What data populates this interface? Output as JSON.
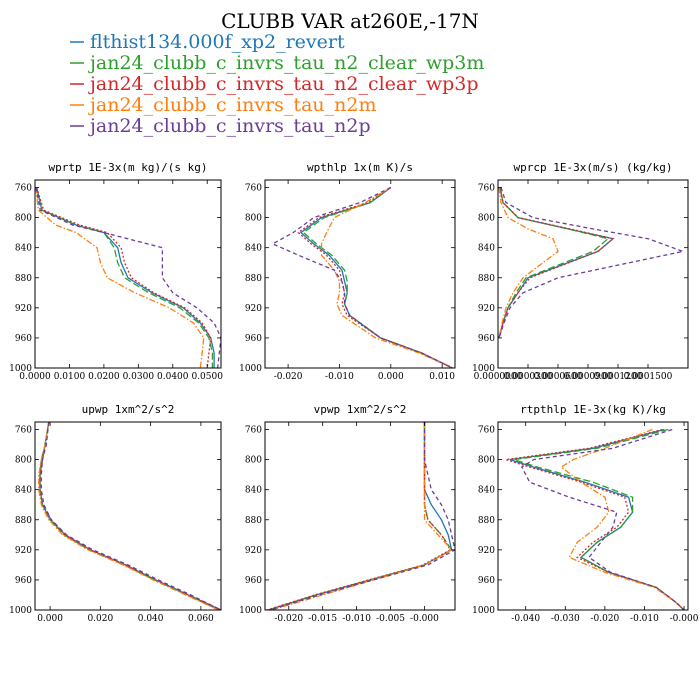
{
  "title": "CLUBB VAR at260E,-17N",
  "legend": [
    {
      "label": "flthist134.000f_xp2_revert",
      "color": "#1f77b4",
      "dash": "solid"
    },
    {
      "label": "jan24_clubb_c_invrs_tau_n2_clear_wp3m",
      "color": "#2ca02c",
      "dash": "longdash"
    },
    {
      "label": "jan24_clubb_c_invrs_tau_n2_clear_wp3p",
      "color": "#d62728",
      "dash": "dot"
    },
    {
      "label": "jan24_clubb_c_invrs_tau_n2m",
      "color": "#ff7f0e",
      "dash": "dashdot"
    },
    {
      "label": "jan24_clubb_c_invrs_tau_n2p",
      "color": "#6a3d9a",
      "dash": "dash"
    }
  ],
  "chart_data": [
    {
      "type": "line",
      "title": "wprtp  1E-3x(m kg)/(s kg)",
      "xlim": [
        0,
        0.054
      ],
      "ylim": [
        1000,
        750
      ],
      "xticks": [
        0,
        0.01,
        0.02,
        0.03,
        0.04,
        0.05
      ],
      "xtick_labels": [
        "0.0000",
        "0.0100",
        "0.0200",
        "0.0300",
        "0.0400",
        "0.0500"
      ],
      "yticks": [
        760,
        800,
        840,
        880,
        920,
        960,
        1000
      ],
      "ytick_labels": [
        "760",
        "800",
        "840",
        "880",
        "920",
        "960",
        "1000"
      ],
      "y": [
        760,
        790,
        810,
        820,
        840,
        860,
        880,
        900,
        920,
        940,
        960,
        980,
        1000
      ],
      "series": [
        {
          "values": [
            0.0005,
            0.002,
            0.012,
            0.02,
            0.024,
            0.025,
            0.027,
            0.034,
            0.043,
            0.048,
            0.051,
            0.052,
            0.052
          ]
        },
        {
          "values": [
            0.0005,
            0.002,
            0.012,
            0.02,
            0.023,
            0.024,
            0.026,
            0.033,
            0.042,
            0.0475,
            0.0505,
            0.0515,
            0.0515
          ]
        },
        {
          "values": [
            0.0005,
            0.0025,
            0.013,
            0.021,
            0.025,
            0.026,
            0.028,
            0.0345,
            0.0435,
            0.0485,
            0.051,
            0.0505,
            0.05
          ]
        },
        {
          "values": [
            0.0002,
            0.001,
            0.006,
            0.012,
            0.018,
            0.019,
            0.021,
            0.029,
            0.039,
            0.046,
            0.049,
            0.0485,
            0.048
          ]
        },
        {
          "values": [
            0.0003,
            0.0015,
            0.011,
            0.02,
            0.037,
            0.037,
            0.037,
            0.04,
            0.047,
            0.052,
            0.054,
            0.0535,
            0.053
          ]
        }
      ]
    },
    {
      "type": "line",
      "title": "wpthlp  1x(m K)/s",
      "xlim": [
        -0.0245,
        0.0125
      ],
      "ylim": [
        1000,
        750
      ],
      "xticks": [
        -0.02,
        -0.01,
        0,
        0.01
      ],
      "xtick_labels": [
        "-0.020",
        "-0.010",
        "0.000",
        "0.010"
      ],
      "yticks": [
        760,
        800,
        840,
        880,
        920,
        960,
        1000
      ],
      "ytick_labels": [
        "760",
        "800",
        "840",
        "880",
        "920",
        "960",
        "1000"
      ],
      "y": [
        760,
        780,
        800,
        820,
        835,
        850,
        870,
        885,
        900,
        915,
        930,
        960,
        980,
        1000
      ],
      "series": [
        {
          "values": [
            0.0,
            -0.004,
            -0.0135,
            -0.0175,
            -0.015,
            -0.012,
            -0.0095,
            -0.009,
            -0.0085,
            -0.009,
            -0.008,
            -0.002,
            0.006,
            0.012
          ]
        },
        {
          "values": [
            0.0,
            -0.004,
            -0.013,
            -0.017,
            -0.0145,
            -0.0115,
            -0.009,
            -0.0085,
            -0.0085,
            -0.009,
            -0.008,
            -0.002,
            0.006,
            0.012
          ]
        },
        {
          "values": [
            0.0,
            -0.0045,
            -0.014,
            -0.018,
            -0.0155,
            -0.0125,
            -0.01,
            -0.0095,
            -0.009,
            -0.0095,
            -0.0085,
            -0.002,
            0.006,
            0.012
          ]
        },
        {
          "values": [
            0.0,
            -0.005,
            -0.011,
            -0.0125,
            -0.0135,
            -0.0135,
            -0.011,
            -0.01,
            -0.01,
            -0.0105,
            -0.0095,
            -0.003,
            0.0055,
            0.012
          ]
        },
        {
          "values": [
            0.0,
            -0.006,
            -0.015,
            -0.019,
            -0.023,
            -0.018,
            -0.011,
            -0.0095,
            -0.009,
            -0.009,
            -0.008,
            -0.002,
            0.006,
            0.012
          ]
        }
      ]
    },
    {
      "type": "line",
      "title": "wprcp  1E-3x(m/s) (kg/kg)",
      "xlim": [
        0,
        0.00019
      ],
      "ylim": [
        1000,
        750
      ],
      "xticks": [
        0,
        3e-05,
        6e-05,
        9e-05,
        0.00012,
        0.00015
      ],
      "xtick_labels": [
        "0.0000000",
        "0.0000300",
        "0.0000600",
        "0.0000900",
        "0.0001200",
        "0.0001500"
      ],
      "yticks": [
        760,
        800,
        840,
        880,
        920,
        960,
        1000
      ],
      "ytick_labels": [
        "760",
        "800",
        "840",
        "880",
        "920",
        "960",
        "1000"
      ],
      "y": [
        760,
        780,
        800,
        815,
        828,
        845,
        880,
        900,
        920,
        940,
        960
      ],
      "series": [
        {
          "values": [
            2e-06,
            5e-06,
            2e-05,
            7e-05,
            0.000115,
            0.0001,
            3e-05,
            2e-05,
            1e-05,
            5e-06,
            1e-06
          ]
        },
        {
          "values": [
            2e-06,
            5e-06,
            2e-05,
            7e-05,
            0.00011,
            9.5e-05,
            2.8e-05,
            1.8e-05,
            1e-05,
            5e-06,
            1e-06
          ]
        },
        {
          "values": [
            2e-06,
            5e-06,
            2e-05,
            7.2e-05,
            0.000115,
            0.0001,
            3.2e-05,
            2e-05,
            1e-05,
            5e-06,
            1e-06
          ]
        },
        {
          "values": [
            1e-06,
            3e-06,
            1e-05,
            3e-05,
            5.5e-05,
            6e-05,
            2.5e-05,
            1.5e-05,
            8e-06,
            4e-06,
            1e-06
          ]
        },
        {
          "values": [
            3e-06,
            8e-06,
            3.5e-05,
            9.5e-05,
            0.00015,
            0.000185,
            6e-05,
            2.5e-05,
            1.2e-05,
            6e-06,
            1e-06
          ]
        }
      ]
    },
    {
      "type": "line",
      "title": "upwp  1xm^2/s^2",
      "xlim": [
        -0.006,
        0.068
      ],
      "ylim": [
        1000,
        750
      ],
      "xticks": [
        0,
        0.02,
        0.04,
        0.06
      ],
      "xtick_labels": [
        "0.000",
        "0.020",
        "0.040",
        "0.060"
      ],
      "yticks": [
        760,
        800,
        840,
        880,
        920,
        960,
        1000
      ],
      "ytick_labels": [
        "760",
        "800",
        "840",
        "880",
        "920",
        "960",
        "1000"
      ],
      "y": [
        750,
        780,
        800,
        820,
        840,
        860,
        880,
        900,
        920,
        940,
        960,
        980,
        1000
      ],
      "series": [
        {
          "values": [
            -0.0005,
            -0.002,
            -0.003,
            -0.004,
            -0.004,
            -0.003,
            0.0,
            0.006,
            0.016,
            0.03,
            0.042,
            0.055,
            0.068
          ]
        },
        {
          "values": [
            -0.0005,
            -0.002,
            -0.0035,
            -0.004,
            -0.004,
            -0.003,
            0.0,
            0.0055,
            0.0155,
            0.0295,
            0.0415,
            0.0545,
            0.0675
          ]
        },
        {
          "values": [
            -0.0005,
            -0.002,
            -0.003,
            -0.004,
            -0.004,
            -0.003,
            0.0005,
            0.006,
            0.016,
            0.03,
            0.042,
            0.055,
            0.068
          ]
        },
        {
          "values": [
            -0.0005,
            -0.002,
            -0.0035,
            -0.0045,
            -0.0045,
            -0.0035,
            -0.0005,
            0.005,
            0.015,
            0.029,
            0.041,
            0.054,
            0.067
          ]
        },
        {
          "values": [
            -0.0005,
            -0.0015,
            -0.003,
            -0.0035,
            -0.0035,
            -0.0025,
            0.0005,
            0.0065,
            0.017,
            0.031,
            0.043,
            0.056,
            0.068
          ]
        }
      ]
    },
    {
      "type": "line",
      "title": "vpwp  1xm^2/s^2",
      "xlim": [
        -0.0235,
        0.0045
      ],
      "ylim": [
        1000,
        750
      ],
      "xticks": [
        -0.02,
        -0.015,
        -0.01,
        -0.005,
        0
      ],
      "xtick_labels": [
        "-0.020",
        "-0.015",
        "-0.010",
        "-0.005",
        "-0.000"
      ],
      "yticks": [
        760,
        800,
        840,
        880,
        920,
        960,
        1000
      ],
      "ytick_labels": [
        "760",
        "800",
        "840",
        "880",
        "920",
        "960",
        "1000"
      ],
      "y": [
        750,
        800,
        840,
        860,
        880,
        900,
        920,
        940,
        960,
        980,
        1000
      ],
      "series": [
        {
          "values": [
            0.0,
            0.0,
            0.0,
            0.001,
            0.0025,
            0.0035,
            0.004,
            0.0,
            -0.008,
            -0.016,
            -0.023
          ]
        },
        {
          "values": [
            0.0,
            0.0,
            0.0,
            0.0,
            0.0005,
            0.0025,
            0.004,
            0.0,
            -0.008,
            -0.016,
            -0.023
          ]
        },
        {
          "values": [
            0.0,
            0.0,
            0.0,
            0.0,
            0.0005,
            0.0025,
            0.0038,
            -0.0002,
            -0.0082,
            -0.0162,
            -0.0232
          ]
        },
        {
          "values": [
            0.0,
            0.0,
            0.0,
            0.0,
            0.0,
            0.002,
            0.004,
            0.0,
            -0.0075,
            -0.015,
            -0.0225
          ]
        },
        {
          "values": [
            0.0,
            0.0,
            0.001,
            0.0025,
            0.0035,
            0.004,
            0.0045,
            0.0005,
            -0.0075,
            -0.0155,
            -0.0228
          ]
        }
      ]
    },
    {
      "type": "line",
      "title": "rtpthlp  1E-3x(kg K)/kg",
      "xlim": [
        -0.047,
        0.001
      ],
      "ylim": [
        1000,
        750
      ],
      "xticks": [
        -0.04,
        -0.03,
        -0.02,
        -0.01,
        0
      ],
      "xtick_labels": [
        "-0.040",
        "-0.030",
        "-0.020",
        "-0.010",
        "-0.000"
      ],
      "yticks": [
        760,
        800,
        840,
        880,
        920,
        960,
        1000
      ],
      "ytick_labels": [
        "760",
        "800",
        "840",
        "880",
        "920",
        "960",
        "1000"
      ],
      "y": [
        760,
        785,
        800,
        810,
        830,
        850,
        870,
        890,
        910,
        930,
        950,
        970,
        990,
        1000
      ],
      "series": [
        {
          "values": [
            -0.005,
            -0.023,
            -0.044,
            -0.038,
            -0.025,
            -0.014,
            -0.013,
            -0.016,
            -0.022,
            -0.026,
            -0.019,
            -0.007,
            -0.002,
            0.0
          ]
        },
        {
          "values": [
            -0.004,
            -0.022,
            -0.043,
            -0.037,
            -0.023,
            -0.013,
            -0.013,
            -0.016,
            -0.022,
            -0.026,
            -0.019,
            -0.007,
            -0.002,
            0.0
          ]
        },
        {
          "values": [
            -0.0055,
            -0.024,
            -0.045,
            -0.039,
            -0.026,
            -0.015,
            -0.014,
            -0.017,
            -0.023,
            -0.027,
            -0.019,
            -0.007,
            -0.002,
            0.0
          ]
        },
        {
          "values": [
            -0.008,
            -0.02,
            -0.028,
            -0.031,
            -0.026,
            -0.02,
            -0.019,
            -0.022,
            -0.027,
            -0.029,
            -0.02,
            -0.0075,
            -0.002,
            0.0
          ]
        },
        {
          "values": [
            -0.003,
            -0.018,
            -0.038,
            -0.041,
            -0.039,
            -0.029,
            -0.017,
            -0.018,
            -0.021,
            -0.024,
            -0.0185,
            -0.007,
            -0.002,
            0.0
          ]
        }
      ]
    }
  ]
}
